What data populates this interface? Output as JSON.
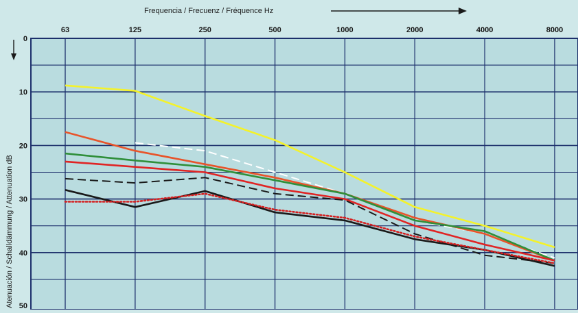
{
  "chart_data": {
    "type": "line",
    "xlabel": "Frequencia / Frecuenz / Fréquence Hz",
    "ylabel": "Atenuación / Schalldämmung / Attenuation dB",
    "x_categories": [
      "63",
      "125",
      "250",
      "500",
      "1000",
      "2000",
      "4000",
      "8000"
    ],
    "y_ticks": [
      "0",
      "10",
      "20",
      "30",
      "40",
      "50"
    ],
    "ylim": [
      0,
      50
    ],
    "y_inverted": true,
    "grid": true,
    "colors": {
      "background": "#cfe8e9",
      "plot_background": "#b9dcdf",
      "grid": "#1c2f6b"
    },
    "series": [
      {
        "color": "#f4f22a",
        "style": "solid",
        "values": [
          8.8,
          9.8,
          14.5,
          19,
          25,
          31.5,
          35,
          39
        ]
      },
      {
        "color": "#ffffff",
        "style": "dashed",
        "values": [
          null,
          19.5,
          21,
          25,
          29,
          34,
          36.5,
          41
        ]
      },
      {
        "color": "#e8542a",
        "style": "solid",
        "values": [
          17.5,
          21,
          23.5,
          26,
          29,
          33.5,
          36.5,
          41.5
        ]
      },
      {
        "color": "#2f8f3a",
        "style": "solid",
        "values": [
          21.5,
          22.8,
          24,
          26.5,
          29,
          34,
          36,
          41.5
        ]
      },
      {
        "color": "#e02424",
        "style": "solid",
        "values": [
          23,
          24,
          25,
          28,
          30,
          35,
          38.5,
          41.5
        ]
      },
      {
        "color": "#1a1a1a",
        "style": "dashed",
        "values": [
          26.2,
          27,
          26,
          29,
          30.2,
          36.5,
          40.5,
          42
        ]
      },
      {
        "color": "#1a1a1a",
        "style": "solid",
        "values": [
          28.3,
          31.5,
          28.5,
          32.5,
          34,
          37.5,
          39.5,
          42.5
        ]
      },
      {
        "color": "#d42020",
        "style": "dotted",
        "values": [
          30.5,
          30.5,
          29,
          32,
          33.5,
          37,
          39.5,
          42
        ]
      }
    ]
  }
}
